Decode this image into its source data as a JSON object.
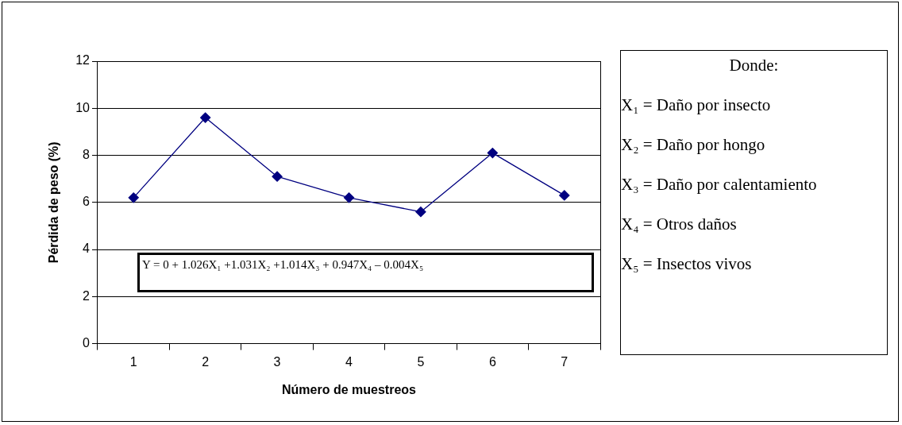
{
  "chart_data": {
    "type": "line",
    "xlabel": "Número de muestreos",
    "ylabel": "Pérdida de peso (%)",
    "categories": [
      "1",
      "2",
      "3",
      "4",
      "5",
      "6",
      "7"
    ],
    "series": [
      {
        "color": "#000080",
        "values": [
          6.2,
          9.6,
          7.1,
          6.2,
          5.6,
          8.1,
          6.3
        ]
      }
    ],
    "ylim": [
      0,
      12
    ],
    "yticks": [
      0,
      2,
      4,
      6,
      8,
      10,
      12
    ],
    "grid": "y",
    "legend": false,
    "marker": "diamond",
    "line_style": "solid",
    "annotations": [
      "Y = 0 + 1.026X₁ +1.031X₂ +1.014X₃ + 0.947X₄ – 0.004X₅",
      "Donde:",
      "X₁ = Daño por insecto",
      "X₂ = Daño por hongo",
      "X₃ = Daño por calentamiento",
      "X₄ = Otros daños",
      "X₅ = Insectos vivos"
    ]
  }
}
